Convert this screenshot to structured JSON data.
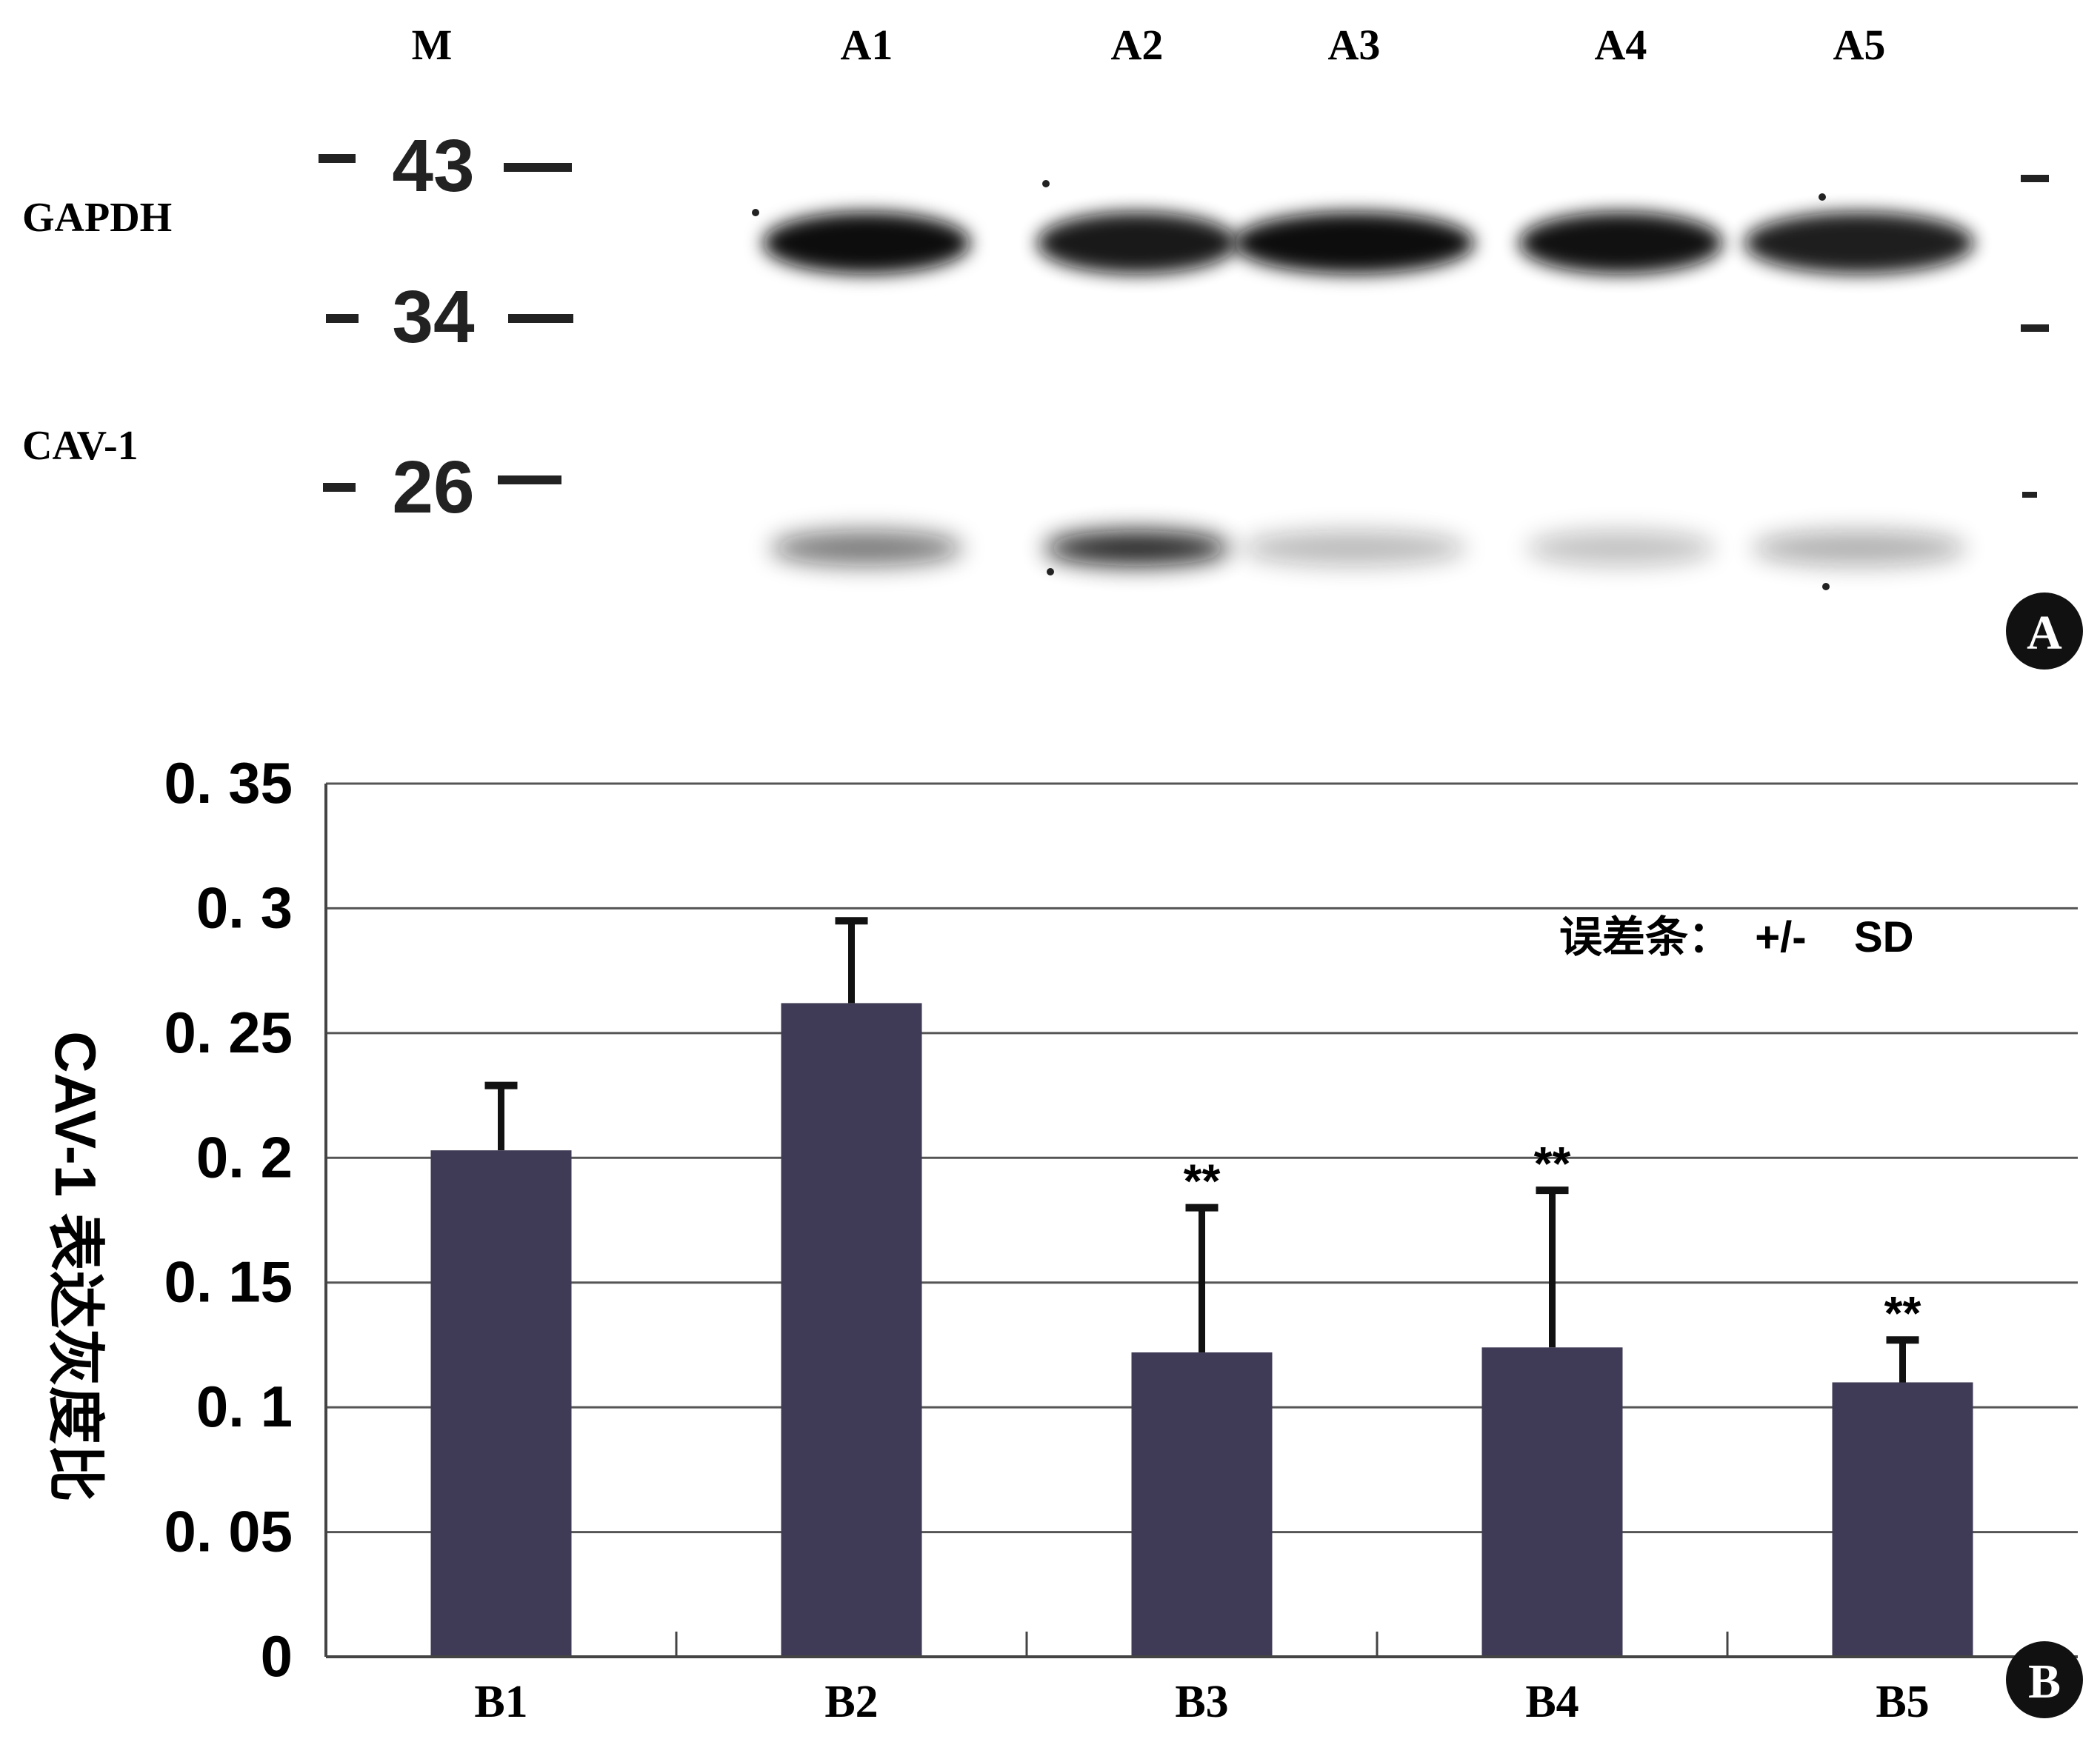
{
  "panel_a": {
    "badge": "A",
    "marker_lane_label": "M",
    "lane_labels": [
      "A1",
      "A2",
      "A3",
      "A4",
      "A5"
    ],
    "row_labels": [
      "GAPDH",
      "CAV-1"
    ],
    "marker_sizes": [
      "43",
      "34",
      "26"
    ],
    "band_color": "#111111",
    "gapdh_intensity": [
      1.0,
      0.95,
      1.0,
      0.98,
      0.93
    ],
    "cav1_intensity": [
      0.55,
      0.9,
      0.28,
      0.25,
      0.32
    ]
  },
  "chart_data": {
    "type": "bar",
    "badge": "B",
    "categories": [
      "B1",
      "B2",
      "B3",
      "B4",
      "B5"
    ],
    "series": [
      {
        "values": [
          0.203,
          0.262,
          0.122,
          0.124,
          0.11
        ],
        "errors": [
          0.026,
          0.033,
          0.058,
          0.063,
          0.017
        ],
        "annotations": [
          "",
          "",
          "**",
          "**",
          "**"
        ]
      }
    ],
    "ylabel": "CAV-1 表达灰度比",
    "ylim": [
      0,
      0.35
    ],
    "yticks": [
      0,
      0.05,
      0.1,
      0.15,
      0.2,
      0.25,
      0.3,
      0.35
    ],
    "ytick_labels": [
      "0",
      "0. 05",
      "0. 1",
      "0. 15",
      "0. 2",
      "0. 25",
      "0. 3",
      "0. 35"
    ],
    "grid": true,
    "legend_text": "误差条：  +/-    SD",
    "legend_position": "top-right",
    "bar_color": "#3f3a55",
    "grid_color": "#555555"
  }
}
